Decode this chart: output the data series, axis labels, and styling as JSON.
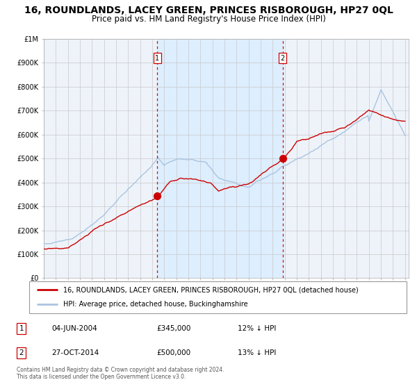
{
  "title": "16, ROUNDLANDS, LACEY GREEN, PRINCES RISBOROUGH, HP27 0QL",
  "subtitle": "Price paid vs. HM Land Registry's House Price Index (HPI)",
  "title_fontsize": 10,
  "subtitle_fontsize": 8.5,
  "ylim": [
    0,
    1000000
  ],
  "yticks": [
    0,
    100000,
    200000,
    300000,
    400000,
    500000,
    600000,
    700000,
    800000,
    900000,
    1000000
  ],
  "ytick_labels": [
    "£0",
    "£100K",
    "£200K",
    "£300K",
    "£400K",
    "£500K",
    "£600K",
    "£700K",
    "£800K",
    "£900K",
    "£1M"
  ],
  "hpi_color": "#a8c4e0",
  "price_color": "#cc0000",
  "marker_color": "#cc0000",
  "shading_color": "#ddeeff",
  "dashed_line_color": "#dd0000",
  "plot_bg_color": "#eef3fa",
  "grid_color": "#c8c8c8",
  "legend_red_label": "16, ROUNDLANDS, LACEY GREEN, PRINCES RISBOROUGH, HP27 0QL (detached house)",
  "legend_blue_label": "HPI: Average price, detached house, Buckinghamshire",
  "sale1_date_num": 2004.42,
  "sale1_price": 345000,
  "sale2_date_num": 2014.83,
  "sale2_price": 500000,
  "annotation1": {
    "num": "1",
    "date": "04-JUN-2004",
    "price": "£345,000",
    "hpi_diff": "12% ↓ HPI"
  },
  "annotation2": {
    "num": "2",
    "date": "27-OCT-2014",
    "price": "£500,000",
    "hpi_diff": "13% ↓ HPI"
  },
  "footer": "Contains HM Land Registry data © Crown copyright and database right 2024.\nThis data is licensed under the Open Government Licence v3.0."
}
